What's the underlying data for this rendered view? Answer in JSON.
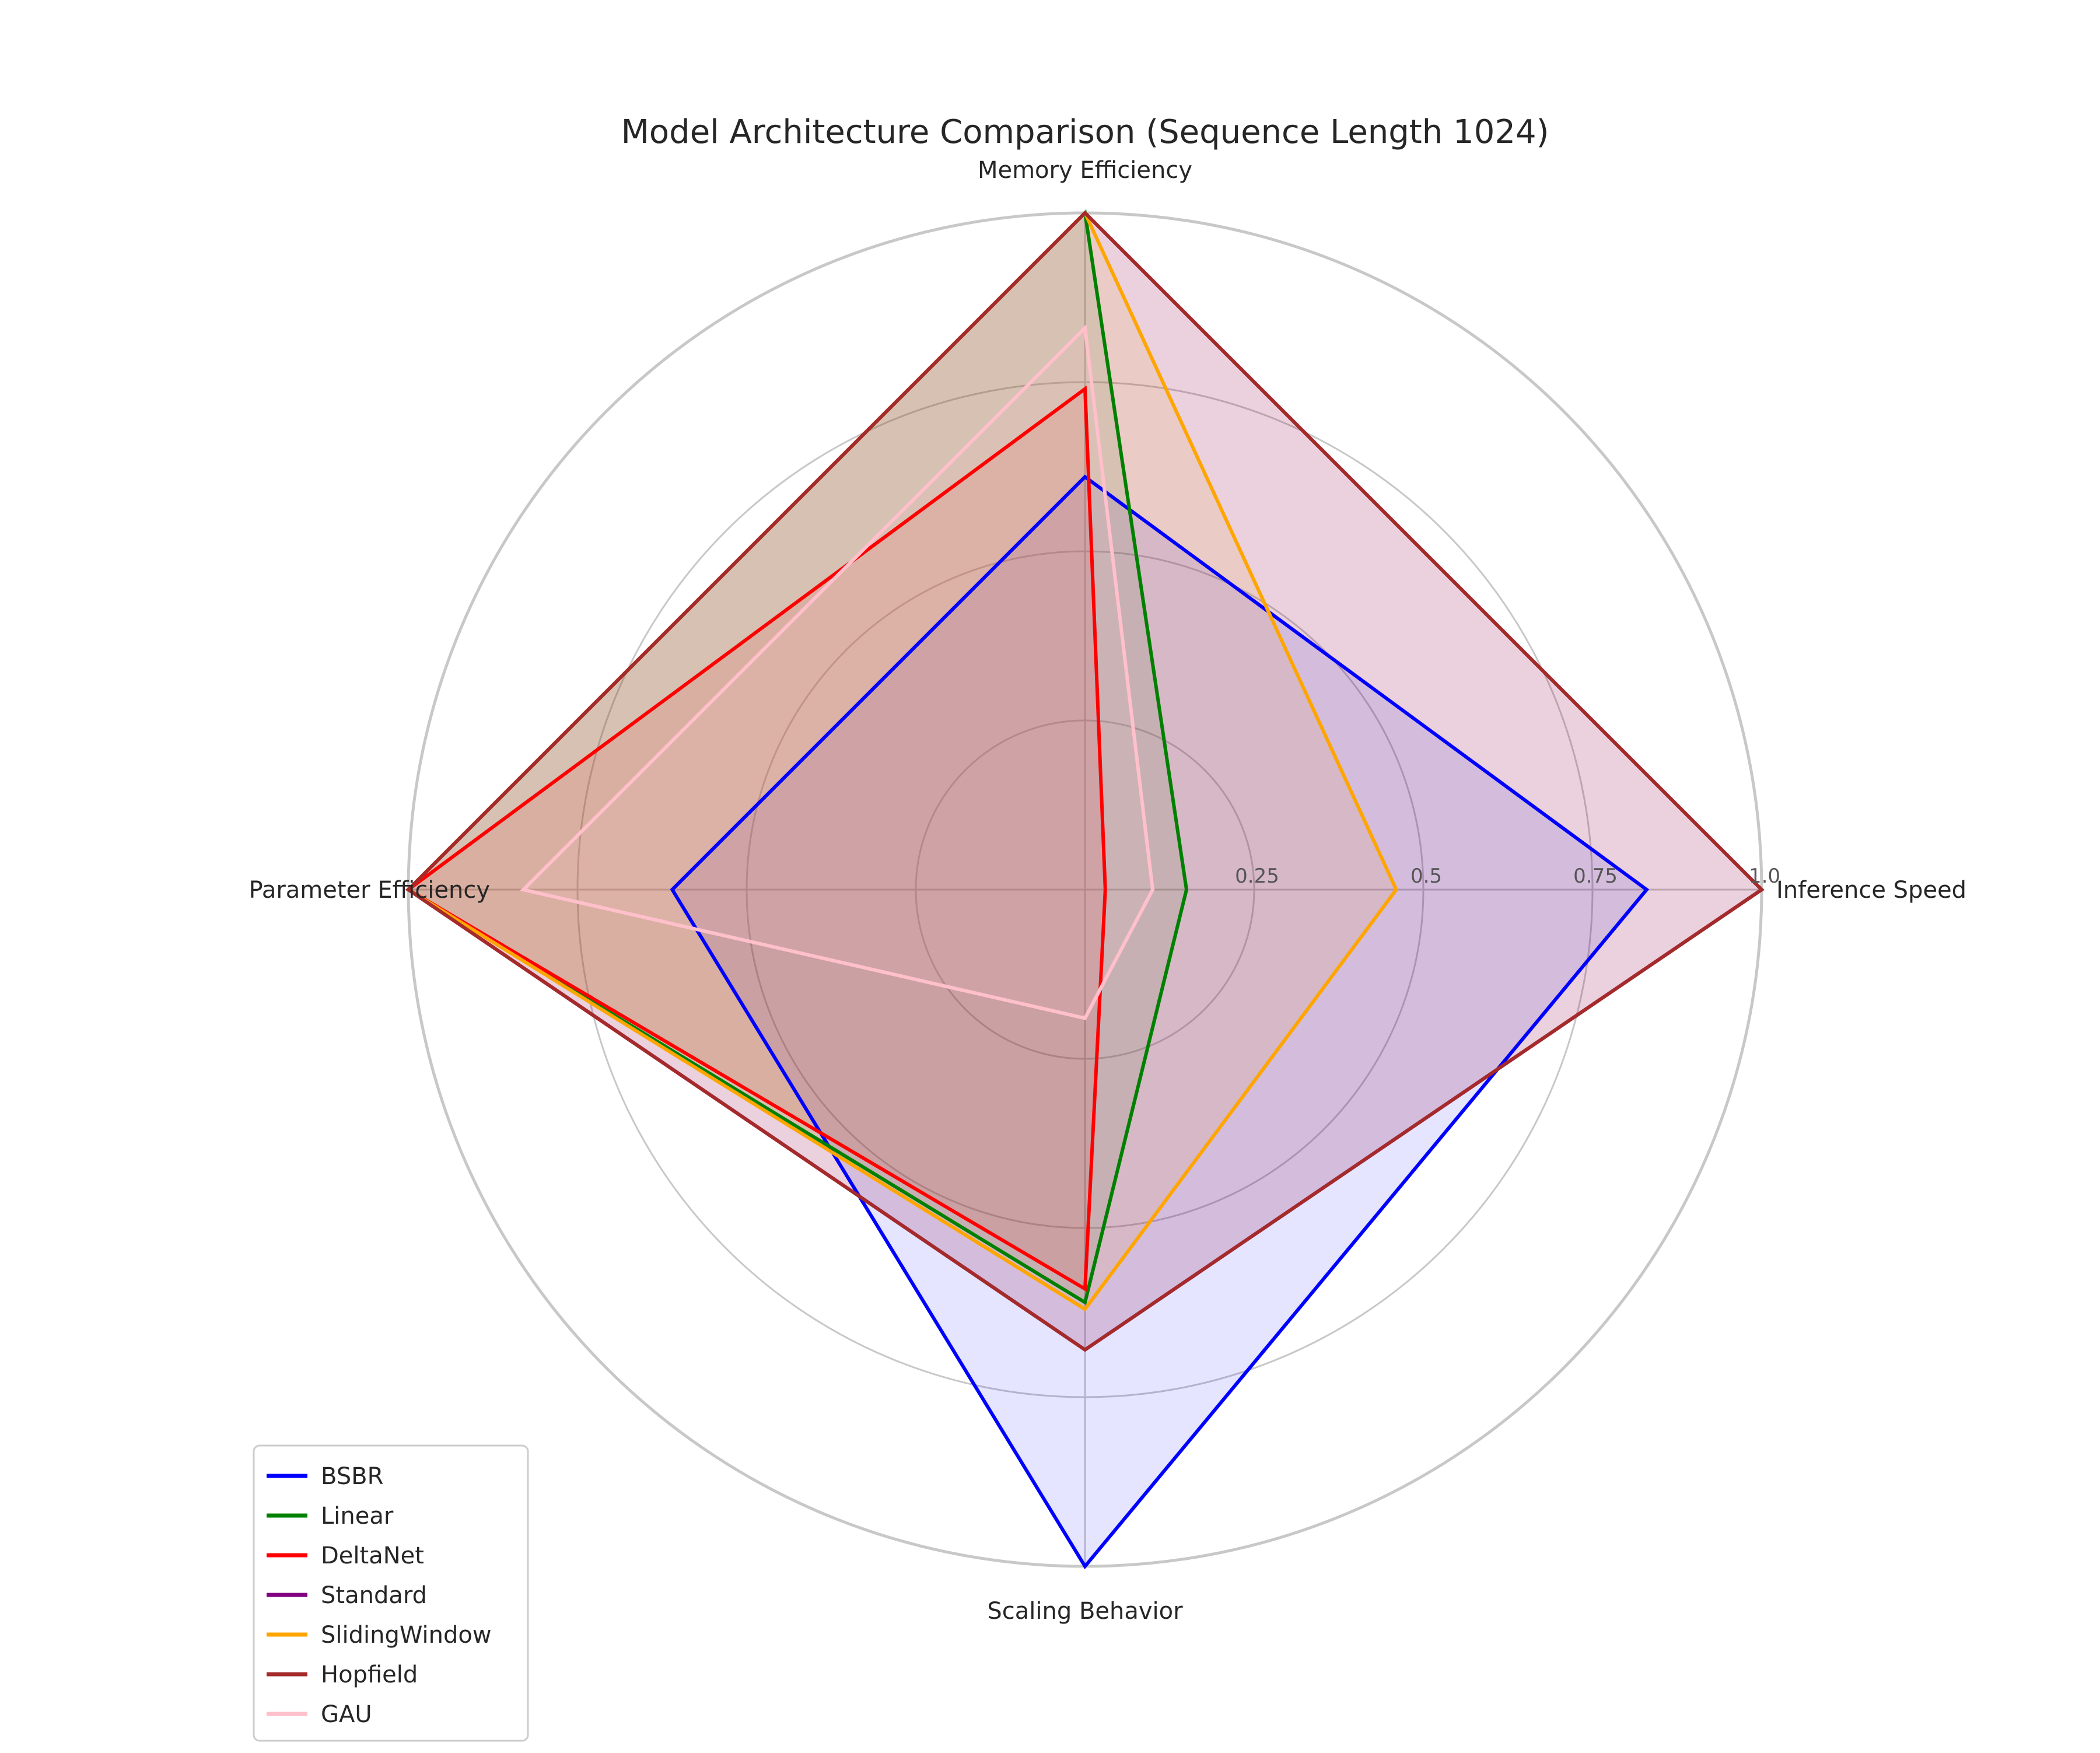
{
  "chart_data": {
    "type": "radar",
    "title": "Model Architecture Comparison (Sequence Length 1024)",
    "axes": [
      "Inference Speed",
      "Memory Efficiency",
      "Parameter Efficiency",
      "Scaling Behavior"
    ],
    "radial_ticks": [
      0.25,
      0.5,
      0.75,
      1.0
    ],
    "radial_tick_labels": [
      "0.25",
      "0.5",
      "0.75",
      "1.0"
    ],
    "rlim": [
      0,
      1.0
    ],
    "grid": true,
    "legend_position": "lower-left",
    "series": [
      {
        "name": "BSBR",
        "color": "#0000ff",
        "values": [
          0.83,
          0.61,
          0.61,
          1.0
        ]
      },
      {
        "name": "Linear",
        "color": "#008000",
        "values": [
          0.15,
          1.0,
          1.0,
          0.61
        ]
      },
      {
        "name": "DeltaNet",
        "color": "#ff0000",
        "values": [
          0.03,
          0.74,
          1.0,
          0.59
        ]
      },
      {
        "name": "Standard",
        "color": "#800080",
        "values": [
          1.0,
          1.0,
          1.0,
          0.68
        ]
      },
      {
        "name": "SlidingWindow",
        "color": "#ffa500",
        "values": [
          0.46,
          1.0,
          1.0,
          0.62
        ]
      },
      {
        "name": "Hopfield",
        "color": "#a52a2a",
        "values": [
          1.0,
          1.0,
          1.0,
          0.68
        ]
      },
      {
        "name": "GAU",
        "color": "#ffc0cb",
        "values": [
          0.1,
          0.83,
          0.83,
          0.19
        ]
      }
    ]
  }
}
